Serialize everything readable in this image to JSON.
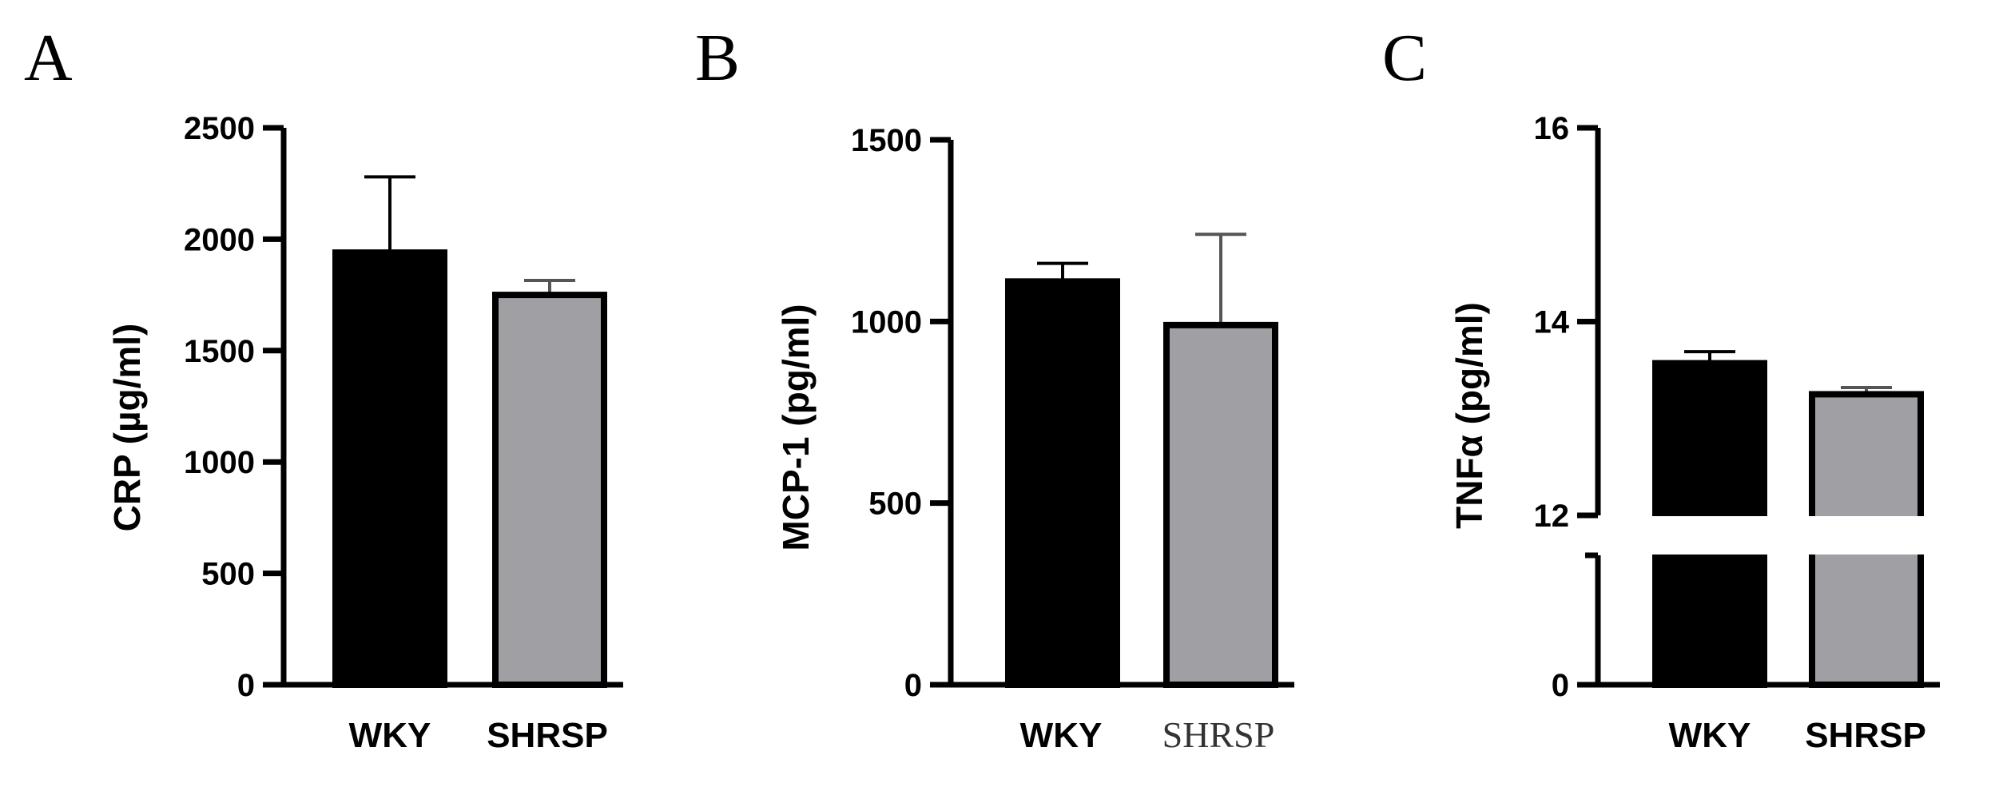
{
  "chart_data": [
    {
      "type": "bar",
      "panel": "A",
      "ylabel": "CRP (µg/ml)",
      "categories": [
        "WKY",
        "SHRSP"
      ],
      "values": [
        1940,
        1750
      ],
      "errors": [
        340,
        65
      ],
      "colors": [
        "#000000",
        "#a0a0a4"
      ],
      "ylim": [
        0,
        2500
      ],
      "yticks": [
        0,
        500,
        1000,
        1500,
        2000,
        2500
      ],
      "ytick_labels": [
        "0",
        "500",
        "1000",
        "1500",
        "2000",
        "2500"
      ],
      "grid": false
    },
    {
      "type": "bar",
      "panel": "B",
      "ylabel": "MCP-1 (pg/ml)",
      "categories": [
        "WKY",
        "SHRSP"
      ],
      "values": [
        1110,
        990
      ],
      "errors": [
        50,
        250
      ],
      "colors": [
        "#000000",
        "#a0a0a4"
      ],
      "ylim": [
        0,
        1500
      ],
      "yticks": [
        0,
        500,
        1000,
        1500
      ],
      "ytick_labels": [
        "0",
        "500",
        "1000",
        "1500"
      ],
      "grid": false
    },
    {
      "type": "bar",
      "panel": "C",
      "ylabel": "TNFα (pg/ml)",
      "categories": [
        "WKY",
        "SHRSP"
      ],
      "values": [
        13.57,
        13.25
      ],
      "errors": [
        0.12,
        0.07
      ],
      "colors": [
        "#000000",
        "#a0a0a4"
      ],
      "ylim": [
        0,
        16
      ],
      "axis_break": [
        2,
        12
      ],
      "yticks": [
        0,
        12,
        14,
        16
      ],
      "ytick_labels": [
        "0",
        "12",
        "14",
        "16"
      ],
      "grid": false
    }
  ]
}
